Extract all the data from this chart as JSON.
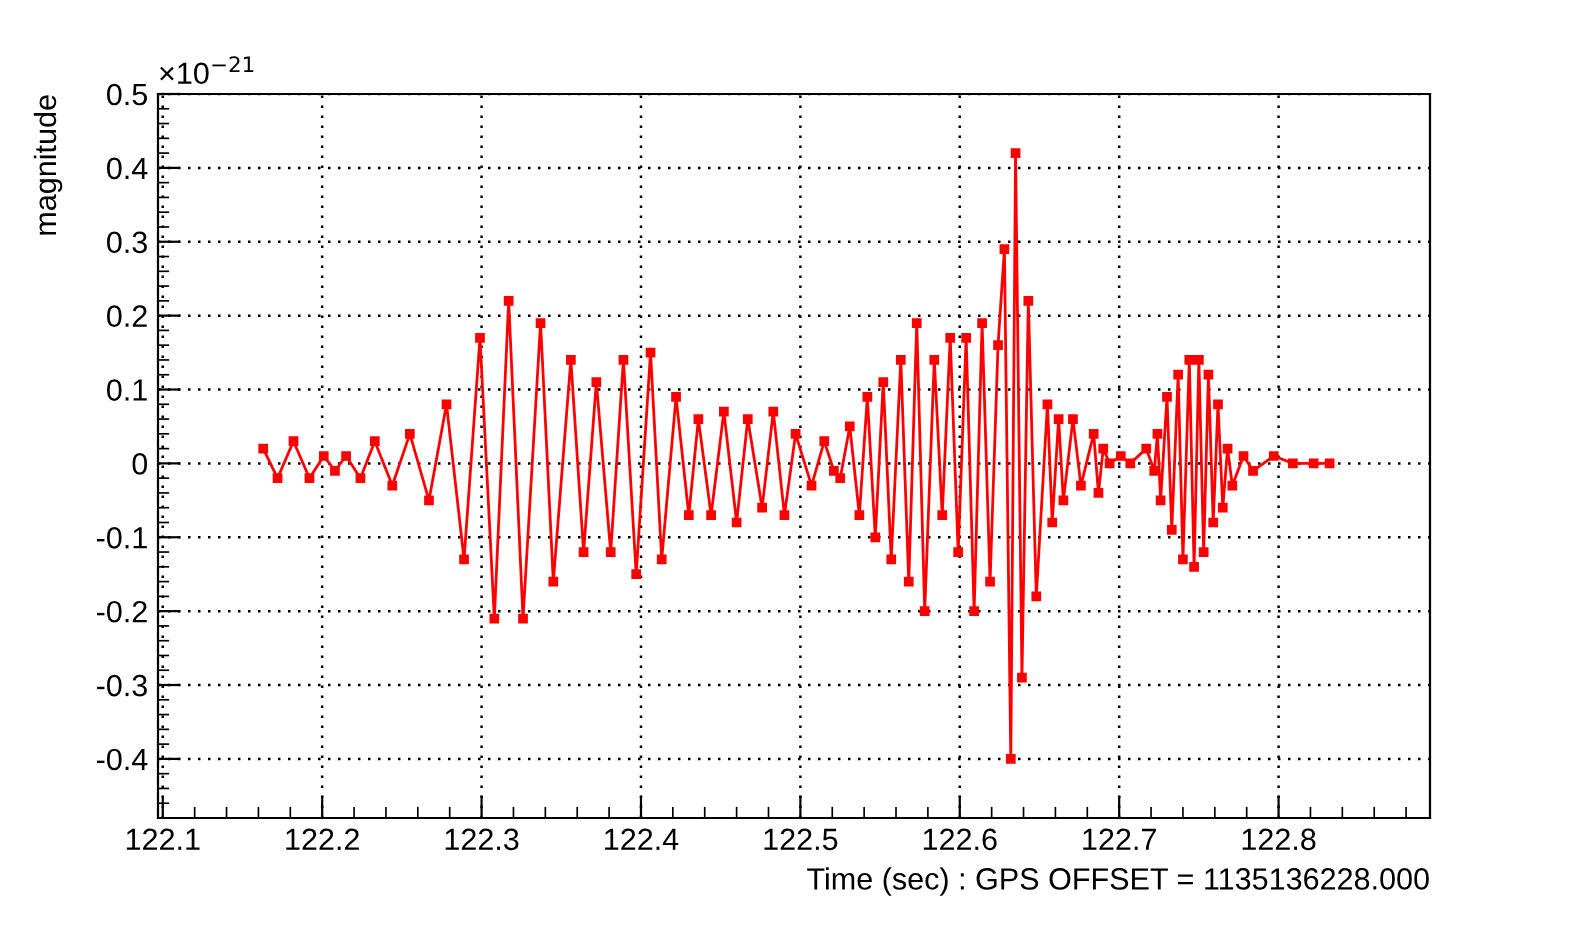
{
  "chart_data": {
    "type": "line",
    "xlabel": "Time (sec) : GPS OFFSET = 1135136228.000",
    "ylabel": "magnitude",
    "annotations": [
      "×10$^{−21}$"
    ],
    "xlim": [
      122.097,
      122.895
    ],
    "xticks": [
      122.1,
      122.2,
      122.3,
      122.4,
      122.5,
      122.6,
      122.7,
      122.8
    ],
    "ylim": [
      -0.48,
      0.5
    ],
    "yticks": [
      -0.4,
      -0.3,
      -0.2,
      -0.1,
      0,
      0.1,
      0.2,
      0.3,
      0.4,
      0.5
    ],
    "grid": true,
    "marker": "square",
    "line_style": "solid",
    "series": [
      {
        "color": "#ff0000",
        "x": [
          122.163,
          122.172,
          122.182,
          122.192,
          122.201,
          122.208,
          122.215,
          122.224,
          122.233,
          122.244,
          122.255,
          122.267,
          122.278,
          122.289,
          122.299,
          122.308,
          122.317,
          122.326,
          122.337,
          122.345,
          122.356,
          122.364,
          122.372,
          122.381,
          122.389,
          122.397,
          122.406,
          122.413,
          122.422,
          122.43,
          122.436,
          122.444,
          122.452,
          122.46,
          122.467,
          122.476,
          122.483,
          122.49,
          122.497,
          122.507,
          122.515,
          122.521,
          122.525,
          122.531,
          122.537,
          122.542,
          122.547,
          122.552,
          122.557,
          122.563,
          122.568,
          122.573,
          122.578,
          122.584,
          122.589,
          122.594,
          122.599,
          122.604,
          122.609,
          122.614,
          122.619,
          122.624,
          122.628,
          122.632,
          122.635,
          122.639,
          122.643,
          122.648,
          122.655,
          122.658,
          122.662,
          122.665,
          122.671,
          122.676,
          122.684,
          122.687,
          122.69,
          122.694,
          122.701,
          122.707,
          122.717,
          122.722,
          122.724,
          122.726,
          122.73,
          122.733,
          122.737,
          122.74,
          122.744,
          122.747,
          122.75,
          122.753,
          122.756,
          122.759,
          122.762,
          122.765,
          122.768,
          122.771,
          122.778,
          122.784,
          122.797,
          122.809,
          122.822,
          122.832
        ],
        "values": [
          0.02,
          -0.02,
          0.03,
          -0.02,
          0.01,
          -0.01,
          0.01,
          -0.02,
          0.03,
          -0.03,
          0.04,
          -0.05,
          0.08,
          -0.13,
          0.17,
          -0.21,
          0.22,
          -0.21,
          0.19,
          -0.16,
          0.14,
          -0.12,
          0.11,
          -0.12,
          0.14,
          -0.15,
          0.15,
          -0.13,
          0.09,
          -0.07,
          0.06,
          -0.07,
          0.07,
          -0.08,
          0.06,
          -0.06,
          0.07,
          -0.07,
          0.04,
          -0.03,
          0.03,
          -0.01,
          -0.02,
          0.05,
          -0.07,
          0.09,
          -0.1,
          0.11,
          -0.13,
          0.14,
          -0.16,
          0.19,
          -0.2,
          0.14,
          -0.07,
          0.17,
          -0.12,
          0.17,
          -0.2,
          0.19,
          -0.16,
          0.16,
          0.29,
          -0.4,
          0.42,
          -0.29,
          0.22,
          -0.18,
          0.08,
          -0.08,
          0.06,
          -0.05,
          0.06,
          -0.03,
          0.04,
          -0.04,
          0.02,
          0.0,
          0.01,
          0.0,
          0.02,
          -0.01,
          0.04,
          -0.05,
          0.09,
          -0.09,
          0.12,
          -0.13,
          0.14,
          -0.14,
          0.14,
          -0.12,
          0.12,
          -0.08,
          0.08,
          -0.06,
          0.02,
          -0.03,
          0.01,
          -0.01,
          0.01,
          0.0,
          0.0,
          0.0
        ]
      }
    ]
  }
}
